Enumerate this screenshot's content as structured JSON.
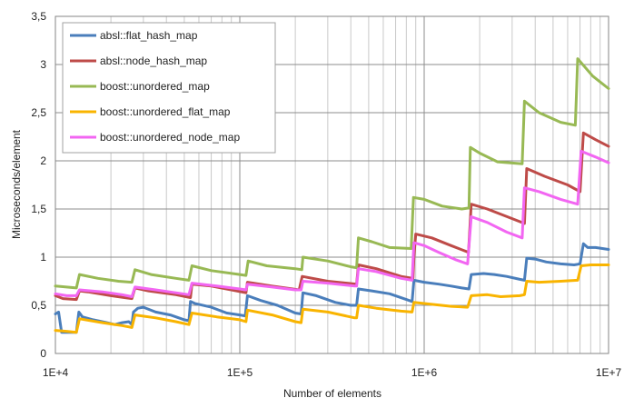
{
  "chart_data": {
    "type": "line",
    "x_scale": "log",
    "xlabel": "Number of elements",
    "ylabel": "Microseconds/element",
    "xlim": [
      10000,
      10000000
    ],
    "ylim": [
      0,
      3.5
    ],
    "grid": true,
    "legend": "top-left",
    "x_ticks": [
      {
        "value": 10000,
        "label": "1E+4"
      },
      {
        "value": 100000,
        "label": "1E+5"
      },
      {
        "value": 1000000,
        "label": "1E+6"
      },
      {
        "value": 10000000,
        "label": "1E+7"
      }
    ],
    "y_ticks": [
      {
        "value": 0,
        "label": "0"
      },
      {
        "value": 0.5,
        "label": "0,5"
      },
      {
        "value": 1,
        "label": "1"
      },
      {
        "value": 1.5,
        "label": "1,5"
      },
      {
        "value": 2,
        "label": "2"
      },
      {
        "value": 2.5,
        "label": "2,5"
      },
      {
        "value": 3,
        "label": "3"
      },
      {
        "value": 3.5,
        "label": "3,5"
      }
    ],
    "series": [
      {
        "name": "absl::flat_hash_map",
        "color": "#4a7ebb",
        "points": [
          [
            10000,
            0.41
          ],
          [
            10400,
            0.43
          ],
          [
            10800,
            0.22
          ],
          [
            11500,
            0.22
          ],
          [
            12000,
            0.22
          ],
          [
            13000,
            0.22
          ],
          [
            13400,
            0.43
          ],
          [
            14000,
            0.38
          ],
          [
            16000,
            0.35
          ],
          [
            19000,
            0.32
          ],
          [
            21000,
            0.3
          ],
          [
            23000,
            0.32
          ],
          [
            25000,
            0.33
          ],
          [
            26000,
            0.3
          ],
          [
            26500,
            0.43
          ],
          [
            28000,
            0.47
          ],
          [
            30000,
            0.48
          ],
          [
            35000,
            0.43
          ],
          [
            42000,
            0.4
          ],
          [
            50000,
            0.35
          ],
          [
            53000,
            0.34
          ],
          [
            54000,
            0.54
          ],
          [
            57000,
            0.52
          ],
          [
            70000,
            0.48
          ],
          [
            85000,
            0.42
          ],
          [
            100000,
            0.4
          ],
          [
            107000,
            0.39
          ],
          [
            110000,
            0.6
          ],
          [
            130000,
            0.55
          ],
          [
            160000,
            0.5
          ],
          [
            200000,
            0.42
          ],
          [
            215000,
            0.41
          ],
          [
            220000,
            0.63
          ],
          [
            260000,
            0.6
          ],
          [
            330000,
            0.53
          ],
          [
            400000,
            0.5
          ],
          [
            430000,
            0.5
          ],
          [
            440000,
            0.67
          ],
          [
            520000,
            0.65
          ],
          [
            650000,
            0.62
          ],
          [
            800000,
            0.56
          ],
          [
            860000,
            0.54
          ],
          [
            880000,
            0.76
          ],
          [
            1000000,
            0.74
          ],
          [
            1200000,
            0.72
          ],
          [
            1400000,
            0.7
          ],
          [
            1600000,
            0.68
          ],
          [
            1750000,
            0.67
          ],
          [
            1800000,
            0.82
          ],
          [
            2100000,
            0.83
          ],
          [
            2400000,
            0.82
          ],
          [
            2800000,
            0.8
          ],
          [
            3300000,
            0.77
          ],
          [
            3500000,
            0.76
          ],
          [
            3600000,
            0.99
          ],
          [
            4000000,
            0.98
          ],
          [
            4600000,
            0.95
          ],
          [
            5500000,
            0.93
          ],
          [
            6500000,
            0.92
          ],
          [
            7000000,
            0.93
          ],
          [
            7300000,
            1.14
          ],
          [
            7700000,
            1.1
          ],
          [
            8500000,
            1.1
          ],
          [
            10000000,
            1.08
          ]
        ]
      },
      {
        "name": "absl::node_hash_map",
        "color": "#be4b48",
        "points": [
          [
            10000,
            0.6
          ],
          [
            11000,
            0.57
          ],
          [
            13000,
            0.56
          ],
          [
            13500,
            0.65
          ],
          [
            15000,
            0.64
          ],
          [
            20000,
            0.6
          ],
          [
            26000,
            0.57
          ],
          [
            27000,
            0.68
          ],
          [
            32000,
            0.65
          ],
          [
            45000,
            0.61
          ],
          [
            54000,
            0.58
          ],
          [
            55000,
            0.72
          ],
          [
            70000,
            0.7
          ],
          [
            90000,
            0.66
          ],
          [
            108000,
            0.63
          ],
          [
            110000,
            0.74
          ],
          [
            150000,
            0.7
          ],
          [
            210000,
            0.66
          ],
          [
            218000,
            0.8
          ],
          [
            300000,
            0.75
          ],
          [
            430000,
            0.72
          ],
          [
            440000,
            0.92
          ],
          [
            550000,
            0.88
          ],
          [
            750000,
            0.8
          ],
          [
            870000,
            0.78
          ],
          [
            880000,
            1.0
          ],
          [
            900000,
            1.24
          ],
          [
            1100000,
            1.2
          ],
          [
            1400000,
            1.12
          ],
          [
            1740000,
            1.05
          ],
          [
            1800000,
            1.55
          ],
          [
            2200000,
            1.5
          ],
          [
            3000000,
            1.4
          ],
          [
            3500000,
            1.35
          ],
          [
            3600000,
            1.92
          ],
          [
            4500000,
            1.84
          ],
          [
            6000000,
            1.75
          ],
          [
            7000000,
            1.68
          ],
          [
            7300000,
            2.29
          ],
          [
            8500000,
            2.22
          ],
          [
            10000000,
            2.15
          ]
        ]
      },
      {
        "name": "boost::unordered_map",
        "color": "#98b954",
        "points": [
          [
            10000,
            0.7
          ],
          [
            11500,
            0.69
          ],
          [
            13000,
            0.68
          ],
          [
            13500,
            0.82
          ],
          [
            17000,
            0.78
          ],
          [
            22000,
            0.75
          ],
          [
            26000,
            0.74
          ],
          [
            27000,
            0.87
          ],
          [
            33000,
            0.82
          ],
          [
            45000,
            0.78
          ],
          [
            53000,
            0.76
          ],
          [
            55000,
            0.91
          ],
          [
            70000,
            0.86
          ],
          [
            100000,
            0.82
          ],
          [
            108000,
            0.81
          ],
          [
            111000,
            0.96
          ],
          [
            140000,
            0.91
          ],
          [
            200000,
            0.88
          ],
          [
            217000,
            0.87
          ],
          [
            220000,
            1.0
          ],
          [
            300000,
            0.96
          ],
          [
            400000,
            0.9
          ],
          [
            430000,
            0.89
          ],
          [
            440000,
            1.2
          ],
          [
            520000,
            1.16
          ],
          [
            650000,
            1.1
          ],
          [
            850000,
            1.09
          ],
          [
            875000,
            1.62
          ],
          [
            1000000,
            1.6
          ],
          [
            1250000,
            1.53
          ],
          [
            1600000,
            1.5
          ],
          [
            1750000,
            1.51
          ],
          [
            1780000,
            2.14
          ],
          [
            2000000,
            2.08
          ],
          [
            2500000,
            1.99
          ],
          [
            3400000,
            1.97
          ],
          [
            3500000,
            2.62
          ],
          [
            4200000,
            2.5
          ],
          [
            5500000,
            2.4
          ],
          [
            6600000,
            2.37
          ],
          [
            6800000,
            3.06
          ],
          [
            8200000,
            2.88
          ],
          [
            10000000,
            2.75
          ]
        ]
      },
      {
        "name": "boost::unordered_flat_map",
        "color": "#f9b400",
        "points": [
          [
            10000,
            0.24
          ],
          [
            11500,
            0.23
          ],
          [
            13000,
            0.22
          ],
          [
            13500,
            0.36
          ],
          [
            18000,
            0.32
          ],
          [
            23000,
            0.29
          ],
          [
            26000,
            0.27
          ],
          [
            27000,
            0.4
          ],
          [
            35000,
            0.37
          ],
          [
            45000,
            0.33
          ],
          [
            53000,
            0.3
          ],
          [
            55000,
            0.42
          ],
          [
            75000,
            0.38
          ],
          [
            100000,
            0.35
          ],
          [
            108000,
            0.33
          ],
          [
            110000,
            0.45
          ],
          [
            150000,
            0.4
          ],
          [
            200000,
            0.33
          ],
          [
            215000,
            0.32
          ],
          [
            220000,
            0.46
          ],
          [
            300000,
            0.43
          ],
          [
            420000,
            0.37
          ],
          [
            430000,
            0.37
          ],
          [
            440000,
            0.5
          ],
          [
            550000,
            0.47
          ],
          [
            750000,
            0.44
          ],
          [
            860000,
            0.43
          ],
          [
            880000,
            0.53
          ],
          [
            1100000,
            0.51
          ],
          [
            1400000,
            0.49
          ],
          [
            1720000,
            0.48
          ],
          [
            1800000,
            0.6
          ],
          [
            2200000,
            0.61
          ],
          [
            2600000,
            0.59
          ],
          [
            3300000,
            0.6
          ],
          [
            3500000,
            0.61
          ],
          [
            3600000,
            0.75
          ],
          [
            4200000,
            0.74
          ],
          [
            5500000,
            0.75
          ],
          [
            6800000,
            0.76
          ],
          [
            7100000,
            0.91
          ],
          [
            8000000,
            0.92
          ],
          [
            10000000,
            0.92
          ]
        ]
      },
      {
        "name": "boost::unordered_node_map",
        "color": "#f266f2",
        "points": [
          [
            10000,
            0.62
          ],
          [
            11500,
            0.6
          ],
          [
            13000,
            0.6
          ],
          [
            13500,
            0.66
          ],
          [
            18000,
            0.64
          ],
          [
            23000,
            0.61
          ],
          [
            26000,
            0.59
          ],
          [
            27000,
            0.69
          ],
          [
            35000,
            0.66
          ],
          [
            45000,
            0.63
          ],
          [
            53000,
            0.61
          ],
          [
            55000,
            0.73
          ],
          [
            75000,
            0.7
          ],
          [
            100000,
            0.67
          ],
          [
            108000,
            0.66
          ],
          [
            110000,
            0.72
          ],
          [
            150000,
            0.69
          ],
          [
            200000,
            0.66
          ],
          [
            215000,
            0.66
          ],
          [
            220000,
            0.75
          ],
          [
            300000,
            0.73
          ],
          [
            420000,
            0.7
          ],
          [
            430000,
            0.7
          ],
          [
            440000,
            0.88
          ],
          [
            550000,
            0.85
          ],
          [
            750000,
            0.78
          ],
          [
            860000,
            0.76
          ],
          [
            880000,
            1.15
          ],
          [
            1000000,
            1.12
          ],
          [
            1200000,
            1.05
          ],
          [
            1500000,
            0.97
          ],
          [
            1720000,
            0.93
          ],
          [
            1800000,
            1.42
          ],
          [
            2200000,
            1.36
          ],
          [
            2800000,
            1.26
          ],
          [
            3400000,
            1.2
          ],
          [
            3500000,
            1.72
          ],
          [
            4200000,
            1.68
          ],
          [
            5500000,
            1.6
          ],
          [
            6800000,
            1.55
          ],
          [
            7100000,
            2.1
          ],
          [
            8500000,
            2.04
          ],
          [
            10000000,
            1.98
          ]
        ]
      }
    ]
  }
}
